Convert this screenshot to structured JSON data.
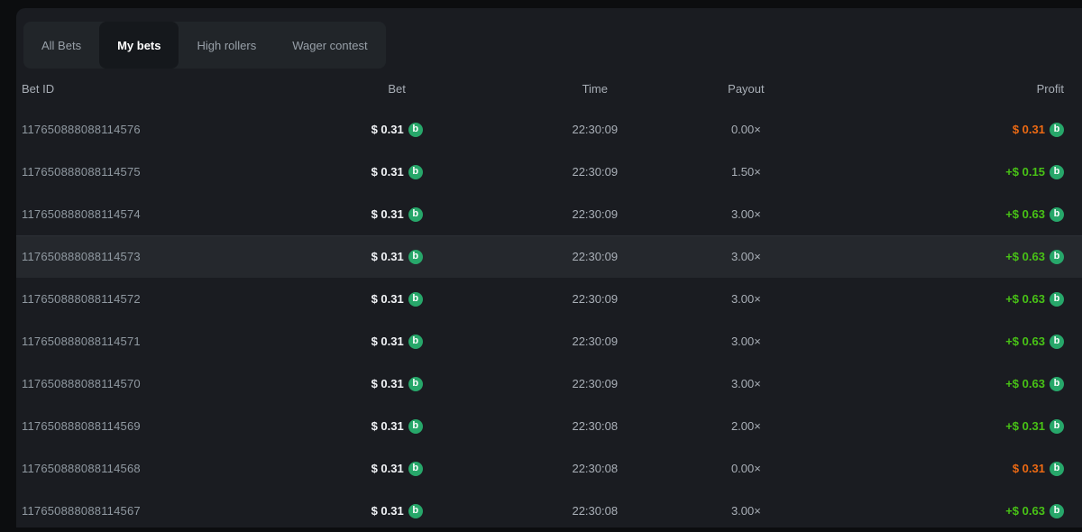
{
  "tabs": [
    {
      "label": "All Bets",
      "active": false
    },
    {
      "label": "My bets",
      "active": true
    },
    {
      "label": "High rollers",
      "active": false
    },
    {
      "label": "Wager contest",
      "active": false
    }
  ],
  "table": {
    "columns": [
      "Bet ID",
      "Bet",
      "Time",
      "Payout",
      "Profit"
    ],
    "rows": [
      {
        "bet_id": "117650888088114576",
        "bet": "$ 0.31",
        "time": "22:30:09",
        "payout": "0.00×",
        "profit": "$ 0.31",
        "outcome": "loss",
        "highlighted": false
      },
      {
        "bet_id": "117650888088114575",
        "bet": "$ 0.31",
        "time": "22:30:09",
        "payout": "1.50×",
        "profit": "+$ 0.15",
        "outcome": "win",
        "highlighted": false
      },
      {
        "bet_id": "117650888088114574",
        "bet": "$ 0.31",
        "time": "22:30:09",
        "payout": "3.00×",
        "profit": "+$ 0.63",
        "outcome": "win",
        "highlighted": false
      },
      {
        "bet_id": "117650888088114573",
        "bet": "$ 0.31",
        "time": "22:30:09",
        "payout": "3.00×",
        "profit": "+$ 0.63",
        "outcome": "win",
        "highlighted": true
      },
      {
        "bet_id": "117650888088114572",
        "bet": "$ 0.31",
        "time": "22:30:09",
        "payout": "3.00×",
        "profit": "+$ 0.63",
        "outcome": "win",
        "highlighted": false
      },
      {
        "bet_id": "117650888088114571",
        "bet": "$ 0.31",
        "time": "22:30:09",
        "payout": "3.00×",
        "profit": "+$ 0.63",
        "outcome": "win",
        "highlighted": false
      },
      {
        "bet_id": "117650888088114570",
        "bet": "$ 0.31",
        "time": "22:30:09",
        "payout": "3.00×",
        "profit": "+$ 0.63",
        "outcome": "win",
        "highlighted": false
      },
      {
        "bet_id": "117650888088114569",
        "bet": "$ 0.31",
        "time": "22:30:08",
        "payout": "2.00×",
        "profit": "+$ 0.31",
        "outcome": "win",
        "highlighted": false
      },
      {
        "bet_id": "117650888088114568",
        "bet": "$ 0.31",
        "time": "22:30:08",
        "payout": "0.00×",
        "profit": "$ 0.31",
        "outcome": "loss",
        "highlighted": false
      },
      {
        "bet_id": "117650888088114567",
        "bet": "$ 0.31",
        "time": "22:30:08",
        "payout": "3.00×",
        "profit": "+$ 0.63",
        "outcome": "win",
        "highlighted": false
      }
    ]
  },
  "icons": {
    "coin_letter": "b"
  },
  "colors": {
    "profit_win": "#48c216",
    "profit_loss": "#ed6a13",
    "coin_green": "#27a76a",
    "panel_bg": "#1a1c21",
    "highlight_row_bg": "#25282d",
    "tabbar_bg": "#212529",
    "active_tab_bg": "#15181c"
  }
}
